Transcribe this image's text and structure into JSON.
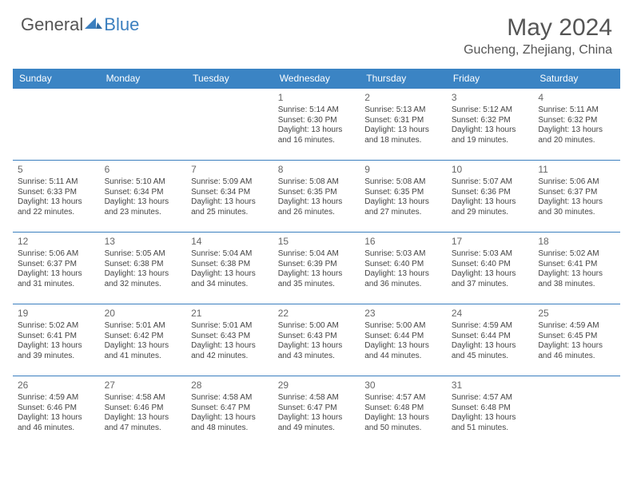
{
  "brand": {
    "part1": "General",
    "part2": "Blue"
  },
  "title": "May 2024",
  "location": "Gucheng, Zhejiang, China",
  "colors": {
    "header_bg": "#3b84c4",
    "header_text": "#ffffff",
    "border": "#3b7fbf",
    "body_text": "#444444",
    "title_text": "#555555",
    "brand_blue": "#3b7fbf",
    "brand_gray": "#555555",
    "background": "#ffffff"
  },
  "fonts": {
    "title_size": 30,
    "location_size": 16,
    "dow_size": 12,
    "daynum_size": 12,
    "body_size": 10
  },
  "daysOfWeek": [
    "Sunday",
    "Monday",
    "Tuesday",
    "Wednesday",
    "Thursday",
    "Friday",
    "Saturday"
  ],
  "leadingBlanks": 3,
  "days": [
    {
      "n": "1",
      "sunrise": "5:14 AM",
      "sunset": "6:30 PM",
      "daylight": "13 hours and 16 minutes."
    },
    {
      "n": "2",
      "sunrise": "5:13 AM",
      "sunset": "6:31 PM",
      "daylight": "13 hours and 18 minutes."
    },
    {
      "n": "3",
      "sunrise": "5:12 AM",
      "sunset": "6:32 PM",
      "daylight": "13 hours and 19 minutes."
    },
    {
      "n": "4",
      "sunrise": "5:11 AM",
      "sunset": "6:32 PM",
      "daylight": "13 hours and 20 minutes."
    },
    {
      "n": "5",
      "sunrise": "5:11 AM",
      "sunset": "6:33 PM",
      "daylight": "13 hours and 22 minutes."
    },
    {
      "n": "6",
      "sunrise": "5:10 AM",
      "sunset": "6:34 PM",
      "daylight": "13 hours and 23 minutes."
    },
    {
      "n": "7",
      "sunrise": "5:09 AM",
      "sunset": "6:34 PM",
      "daylight": "13 hours and 25 minutes."
    },
    {
      "n": "8",
      "sunrise": "5:08 AM",
      "sunset": "6:35 PM",
      "daylight": "13 hours and 26 minutes."
    },
    {
      "n": "9",
      "sunrise": "5:08 AM",
      "sunset": "6:35 PM",
      "daylight": "13 hours and 27 minutes."
    },
    {
      "n": "10",
      "sunrise": "5:07 AM",
      "sunset": "6:36 PM",
      "daylight": "13 hours and 29 minutes."
    },
    {
      "n": "11",
      "sunrise": "5:06 AM",
      "sunset": "6:37 PM",
      "daylight": "13 hours and 30 minutes."
    },
    {
      "n": "12",
      "sunrise": "5:06 AM",
      "sunset": "6:37 PM",
      "daylight": "13 hours and 31 minutes."
    },
    {
      "n": "13",
      "sunrise": "5:05 AM",
      "sunset": "6:38 PM",
      "daylight": "13 hours and 32 minutes."
    },
    {
      "n": "14",
      "sunrise": "5:04 AM",
      "sunset": "6:38 PM",
      "daylight": "13 hours and 34 minutes."
    },
    {
      "n": "15",
      "sunrise": "5:04 AM",
      "sunset": "6:39 PM",
      "daylight": "13 hours and 35 minutes."
    },
    {
      "n": "16",
      "sunrise": "5:03 AM",
      "sunset": "6:40 PM",
      "daylight": "13 hours and 36 minutes."
    },
    {
      "n": "17",
      "sunrise": "5:03 AM",
      "sunset": "6:40 PM",
      "daylight": "13 hours and 37 minutes."
    },
    {
      "n": "18",
      "sunrise": "5:02 AM",
      "sunset": "6:41 PM",
      "daylight": "13 hours and 38 minutes."
    },
    {
      "n": "19",
      "sunrise": "5:02 AM",
      "sunset": "6:41 PM",
      "daylight": "13 hours and 39 minutes."
    },
    {
      "n": "20",
      "sunrise": "5:01 AM",
      "sunset": "6:42 PM",
      "daylight": "13 hours and 41 minutes."
    },
    {
      "n": "21",
      "sunrise": "5:01 AM",
      "sunset": "6:43 PM",
      "daylight": "13 hours and 42 minutes."
    },
    {
      "n": "22",
      "sunrise": "5:00 AM",
      "sunset": "6:43 PM",
      "daylight": "13 hours and 43 minutes."
    },
    {
      "n": "23",
      "sunrise": "5:00 AM",
      "sunset": "6:44 PM",
      "daylight": "13 hours and 44 minutes."
    },
    {
      "n": "24",
      "sunrise": "4:59 AM",
      "sunset": "6:44 PM",
      "daylight": "13 hours and 45 minutes."
    },
    {
      "n": "25",
      "sunrise": "4:59 AM",
      "sunset": "6:45 PM",
      "daylight": "13 hours and 46 minutes."
    },
    {
      "n": "26",
      "sunrise": "4:59 AM",
      "sunset": "6:46 PM",
      "daylight": "13 hours and 46 minutes."
    },
    {
      "n": "27",
      "sunrise": "4:58 AM",
      "sunset": "6:46 PM",
      "daylight": "13 hours and 47 minutes."
    },
    {
      "n": "28",
      "sunrise": "4:58 AM",
      "sunset": "6:47 PM",
      "daylight": "13 hours and 48 minutes."
    },
    {
      "n": "29",
      "sunrise": "4:58 AM",
      "sunset": "6:47 PM",
      "daylight": "13 hours and 49 minutes."
    },
    {
      "n": "30",
      "sunrise": "4:57 AM",
      "sunset": "6:48 PM",
      "daylight": "13 hours and 50 minutes."
    },
    {
      "n": "31",
      "sunrise": "4:57 AM",
      "sunset": "6:48 PM",
      "daylight": "13 hours and 51 minutes."
    }
  ],
  "labels": {
    "sunrise": "Sunrise:",
    "sunset": "Sunset:",
    "daylight": "Daylight:"
  }
}
